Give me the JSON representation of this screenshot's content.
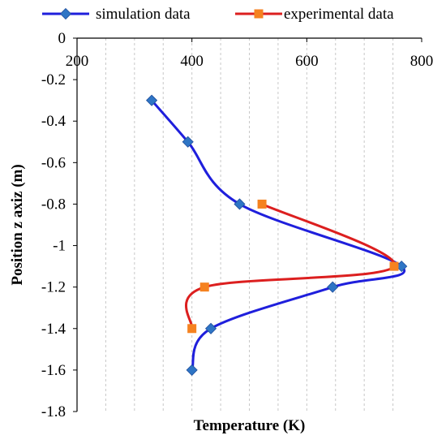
{
  "chart_data": {
    "type": "scatter",
    "xlabel": "Temperature (K)",
    "ylabel": "Position z axiz (m)",
    "xlim": [
      200,
      800
    ],
    "ylim": [
      -1.8,
      0
    ],
    "x_ticks": [
      200,
      400,
      600,
      800
    ],
    "y_ticks": [
      0,
      -0.2,
      -0.4,
      -0.6,
      -0.8,
      -1,
      -1.2,
      -1.4,
      -1.6,
      -1.8
    ],
    "x_tick_labels": [
      "200",
      "400",
      "600",
      "800"
    ],
    "y_tick_labels": [
      "0",
      "-0.2",
      "-0.4",
      "-0.6",
      "-0.8",
      "-1",
      "-1.2",
      "-1.4",
      "-1.6",
      "-1.8"
    ],
    "x_axis_position": "top",
    "grid": "vertical-dashed",
    "legend_position": "top",
    "series": [
      {
        "name": "simulation data",
        "color": "#1f1fdc",
        "marker": "diamond",
        "marker_color": "#2e75c5",
        "points": [
          {
            "x": 330,
            "y": -0.3
          },
          {
            "x": 393,
            "y": -0.5
          },
          {
            "x": 483,
            "y": -0.8
          },
          {
            "x": 765,
            "y": -1.1
          },
          {
            "x": 645,
            "y": -1.2
          },
          {
            "x": 433,
            "y": -1.4
          },
          {
            "x": 400,
            "y": -1.6
          }
        ]
      },
      {
        "name": "experimental data",
        "color": "#dc1f1f",
        "marker": "square",
        "marker_color": "#f58220",
        "points": [
          {
            "x": 522,
            "y": -0.8
          },
          {
            "x": 752,
            "y": -1.1
          },
          {
            "x": 422,
            "y": -1.2
          },
          {
            "x": 400,
            "y": -1.4
          }
        ]
      }
    ]
  }
}
